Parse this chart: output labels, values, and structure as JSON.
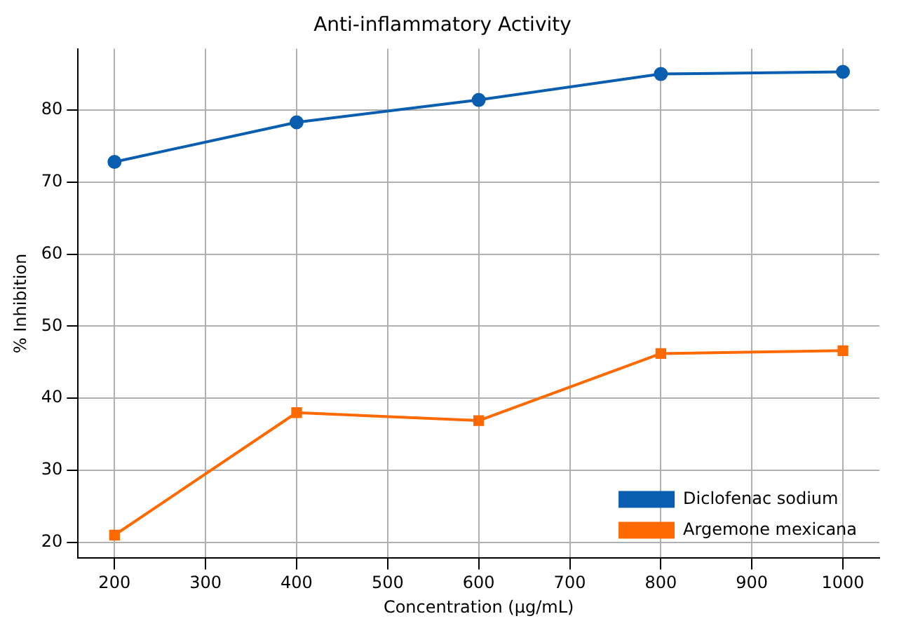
{
  "chart_data": {
    "type": "line",
    "title": "Anti-inflammatory Activity",
    "xlabel": "Concentration (µg/mL)",
    "ylabel": "% Inhibition",
    "x": [
      200,
      400,
      600,
      800,
      1000
    ],
    "series": [
      {
        "name": "Diclofenac sodium",
        "color": "#0a5eb0",
        "marker": "circle",
        "values": [
          72.8,
          78.3,
          81.4,
          85.0,
          85.3
        ]
      },
      {
        "name": "Argemone mexicana",
        "color": "#ff6a00",
        "marker": "square",
        "values": [
          21.0,
          38.0,
          36.9,
          46.2,
          46.6
        ]
      }
    ],
    "xlim": [
      160,
      1040
    ],
    "xticks": [
      200,
      300,
      400,
      500,
      600,
      700,
      800,
      900,
      1000
    ],
    "ylim": [
      17.8,
      88.5
    ],
    "yticks": [
      20,
      30,
      40,
      50,
      60,
      70,
      80
    ],
    "grid": true,
    "legend": "bottom right",
    "line_style": "solid"
  }
}
